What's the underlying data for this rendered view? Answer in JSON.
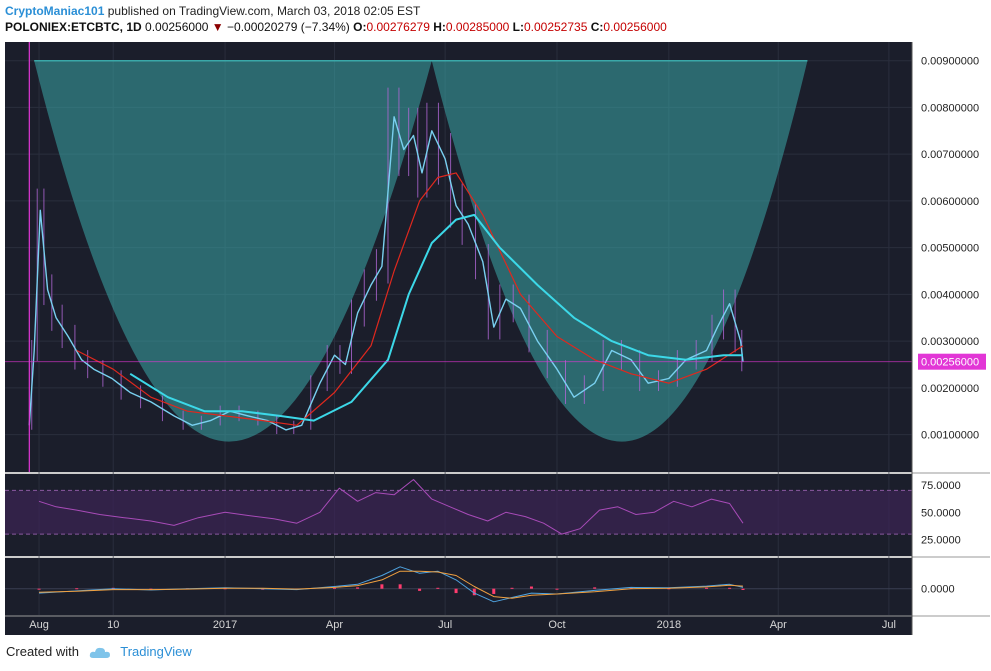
{
  "header": {
    "author": "CryptoManiac101",
    "published": "published on TradingView.com, March 03, 2018 02:05 EST",
    "symbol": "POLONIEX:ETCBTC, 1D",
    "last": "0.00256000",
    "change": "−0.00020279 (−7.34%)",
    "o_label": "O:",
    "o": "0.00276279",
    "h_label": "H:",
    "h": "0.00285000",
    "l_label": "L:",
    "l": "0.00252735",
    "c_label": "C:",
    "c": "0.00256000"
  },
  "footer": {
    "created": "Created with",
    "brand": "TradingView"
  },
  "colors": {
    "background": "#1b1e2b",
    "bowl": "#3aa8a8",
    "candle": "#79d0f0",
    "candle_wick": "#b066d6",
    "ema_fast": "#e0281e",
    "ema_slow": "#3cd8e8",
    "rsi": "#a84bb8",
    "macd_hist": "#ff3c6e",
    "price_label": "#e236d6"
  },
  "chart_data": [
    {
      "type": "line",
      "panel": "price",
      "y_scale": "linear",
      "ylim": [
        0.0002,
        0.0094
      ],
      "y_ticks": [
        "0.00900000",
        "0.00800000",
        "0.00700000",
        "0.00600000",
        "0.00500000",
        "0.00400000",
        "0.00300000",
        "0.00200000",
        "0.00100000"
      ],
      "y_tick_values": [
        0.009,
        0.008,
        0.007,
        0.006,
        0.005,
        0.004,
        0.003,
        0.002,
        0.001
      ],
      "x_ticks": [
        "Aug",
        "10",
        "2017",
        "Apr",
        "Jul",
        "Oct",
        "2018",
        "Apr",
        "Jul"
      ],
      "x_tick_dates": [
        "2016-08-01",
        "2016-10-01",
        "2017-01-01",
        "2017-04-01",
        "2017-07-01",
        "2017-10-01",
        "2018-01-01",
        "2018-04-01",
        "2018-07-01"
      ],
      "xlim": [
        "2016-07-04",
        "2018-07-20"
      ],
      "last_price_label": "0.00256000",
      "last_price": 0.00256,
      "series": [
        {
          "x": [
            "2016-07-24",
            "2016-07-28",
            "2016-08-02",
            "2016-08-08",
            "2016-08-15",
            "2016-08-25",
            "2016-09-05",
            "2016-09-15",
            "2016-09-30",
            "2016-10-15",
            "2016-11-01",
            "2016-11-20",
            "2016-12-05",
            "2016-12-20",
            "2017-01-05",
            "2017-01-20",
            "2017-02-05",
            "2017-02-20",
            "2017-03-05",
            "2017-03-20",
            "2017-04-01",
            "2017-04-10",
            "2017-04-20",
            "2017-05-01",
            "2017-05-10",
            "2017-05-20",
            "2017-05-28",
            "2017-06-05",
            "2017-06-12",
            "2017-06-20",
            "2017-07-01",
            "2017-07-10",
            "2017-07-20",
            "2017-08-01",
            "2017-08-10",
            "2017-08-20",
            "2017-09-01",
            "2017-09-15",
            "2017-10-01",
            "2017-10-15",
            "2017-11-01",
            "2017-11-15",
            "2017-12-01",
            "2017-12-15",
            "2018-01-01",
            "2018-01-15",
            "2018-02-01",
            "2018-02-10",
            "2018-02-20",
            "2018-03-01",
            "2018-03-03"
          ],
          "values": [
            0.0012,
            0.0028,
            0.0058,
            0.0041,
            0.0035,
            0.0031,
            0.0026,
            0.0024,
            0.0022,
            0.0019,
            0.0017,
            0.0014,
            0.0012,
            0.0013,
            0.0015,
            0.0014,
            0.0013,
            0.0011,
            0.0012,
            0.0021,
            0.0027,
            0.0025,
            0.0036,
            0.0042,
            0.0046,
            0.0078,
            0.0071,
            0.0074,
            0.0066,
            0.0075,
            0.0069,
            0.0059,
            0.0055,
            0.0047,
            0.0033,
            0.0039,
            0.0037,
            0.003,
            0.0024,
            0.0018,
            0.0021,
            0.0028,
            0.0026,
            0.0021,
            0.0022,
            0.0026,
            0.0028,
            0.0033,
            0.0038,
            0.003,
            0.00256
          ]
        },
        {
          "x": [
            "2016-09-01",
            "2016-10-01",
            "2016-11-01",
            "2016-12-01",
            "2017-01-01",
            "2017-02-01",
            "2017-03-01",
            "2017-04-01",
            "2017-05-01",
            "2017-05-20",
            "2017-06-10",
            "2017-06-25",
            "2017-07-10",
            "2017-08-01",
            "2017-09-01",
            "2017-10-01",
            "2017-11-01",
            "2017-12-01",
            "2018-01-01",
            "2018-02-01",
            "2018-03-03"
          ],
          "values": [
            0.0028,
            0.0024,
            0.0018,
            0.0015,
            0.0014,
            0.0013,
            0.0012,
            0.0019,
            0.0029,
            0.0045,
            0.006,
            0.0065,
            0.0066,
            0.0057,
            0.004,
            0.0031,
            0.0026,
            0.0023,
            0.0021,
            0.0024,
            0.0029
          ]
        },
        {
          "x": [
            "2016-10-15",
            "2016-11-15",
            "2016-12-15",
            "2017-01-15",
            "2017-02-15",
            "2017-03-15",
            "2017-04-15",
            "2017-05-15",
            "2017-06-01",
            "2017-06-20",
            "2017-07-10",
            "2017-07-25",
            "2017-08-15",
            "2017-09-15",
            "2017-10-15",
            "2017-11-15",
            "2017-12-15",
            "2018-01-15",
            "2018-02-15",
            "2018-03-03"
          ],
          "values": [
            0.0023,
            0.0018,
            0.0015,
            0.0015,
            0.0014,
            0.0013,
            0.0017,
            0.0026,
            0.004,
            0.0051,
            0.0056,
            0.0057,
            0.005,
            0.0042,
            0.0035,
            0.003,
            0.0027,
            0.0026,
            0.0027,
            0.0027
          ]
        }
      ],
      "pattern": {
        "type": "cup",
        "rim": 0.009,
        "bottom": 0.00085
      }
    },
    {
      "type": "line",
      "panel": "rsi",
      "ylim": [
        10,
        85
      ],
      "y_ticks": [
        "75.0000",
        "50.0000",
        "25.0000"
      ],
      "y_tick_values": [
        75,
        50,
        25
      ],
      "bands": [
        30,
        70
      ],
      "series": [
        {
          "x": [
            "2016-08-01",
            "2016-08-15",
            "2016-09-01",
            "2016-09-20",
            "2016-10-10",
            "2016-11-01",
            "2016-11-20",
            "2016-12-10",
            "2017-01-01",
            "2017-01-20",
            "2017-02-10",
            "2017-03-01",
            "2017-03-20",
            "2017-04-05",
            "2017-04-20",
            "2017-05-05",
            "2017-05-20",
            "2017-06-05",
            "2017-06-20",
            "2017-07-05",
            "2017-07-20",
            "2017-08-05",
            "2017-08-20",
            "2017-09-05",
            "2017-09-20",
            "2017-10-05",
            "2017-10-20",
            "2017-11-05",
            "2017-11-20",
            "2017-12-05",
            "2017-12-20",
            "2018-01-05",
            "2018-01-20",
            "2018-02-05",
            "2018-02-20",
            "2018-03-03"
          ],
          "values": [
            60,
            55,
            52,
            48,
            45,
            42,
            38,
            45,
            50,
            47,
            44,
            40,
            50,
            72,
            60,
            68,
            66,
            80,
            62,
            55,
            48,
            42,
            50,
            46,
            40,
            30,
            35,
            52,
            55,
            48,
            50,
            60,
            55,
            62,
            58,
            40
          ]
        }
      ]
    },
    {
      "type": "line",
      "panel": "macd",
      "ylim": [
        -0.0006,
        0.0007
      ],
      "y_ticks": [
        "0.0000"
      ],
      "y_tick_values": [
        0
      ],
      "series": [
        {
          "x": [
            "2016-08-01",
            "2016-09-01",
            "2016-10-01",
            "2016-11-01",
            "2016-12-01",
            "2017-01-01",
            "2017-02-01",
            "2017-03-01",
            "2017-04-01",
            "2017-04-20",
            "2017-05-10",
            "2017-05-25",
            "2017-06-10",
            "2017-06-25",
            "2017-07-10",
            "2017-07-25",
            "2017-08-10",
            "2017-08-25",
            "2017-09-10",
            "2017-10-01",
            "2017-11-01",
            "2017-12-01",
            "2018-01-01",
            "2018-02-01",
            "2018-02-20",
            "2018-03-03"
          ],
          "values": [
            -0.0001,
            -5e-05,
            0,
            -3e-05,
            0,
            2e-05,
            0,
            -2e-05,
            5e-05,
            0.0001,
            0.0003,
            0.0005,
            0.00035,
            0.0004,
            0.0002,
            -0.0001,
            -0.0003,
            -0.0002,
            -0.0001,
            -0.00012,
            -4e-05,
            3e-05,
            2e-05,
            6e-05,
            0.0001,
            3e-05
          ]
        },
        {
          "x": [
            "2016-08-01",
            "2016-09-01",
            "2016-10-01",
            "2016-11-01",
            "2016-12-01",
            "2017-01-01",
            "2017-02-01",
            "2017-03-01",
            "2017-04-01",
            "2017-04-20",
            "2017-05-10",
            "2017-05-25",
            "2017-06-10",
            "2017-06-25",
            "2017-07-10",
            "2017-07-25",
            "2017-08-10",
            "2017-08-25",
            "2017-09-10",
            "2017-10-01",
            "2017-11-01",
            "2017-12-01",
            "2018-01-01",
            "2018-02-01",
            "2018-02-20",
            "2018-03-03"
          ],
          "values": [
            -8e-05,
            -6e-05,
            -2e-05,
            -2e-05,
            -1e-05,
            1e-05,
            1e-05,
            -1e-05,
            3e-05,
            7e-05,
            0.0002,
            0.0004,
            0.0004,
            0.00038,
            0.0003,
            5e-05,
            -0.00018,
            -0.00022,
            -0.00015,
            -0.00012,
            -7e-05,
            0,
            1e-05,
            4e-05,
            8e-05,
            6e-05
          ]
        }
      ]
    }
  ]
}
